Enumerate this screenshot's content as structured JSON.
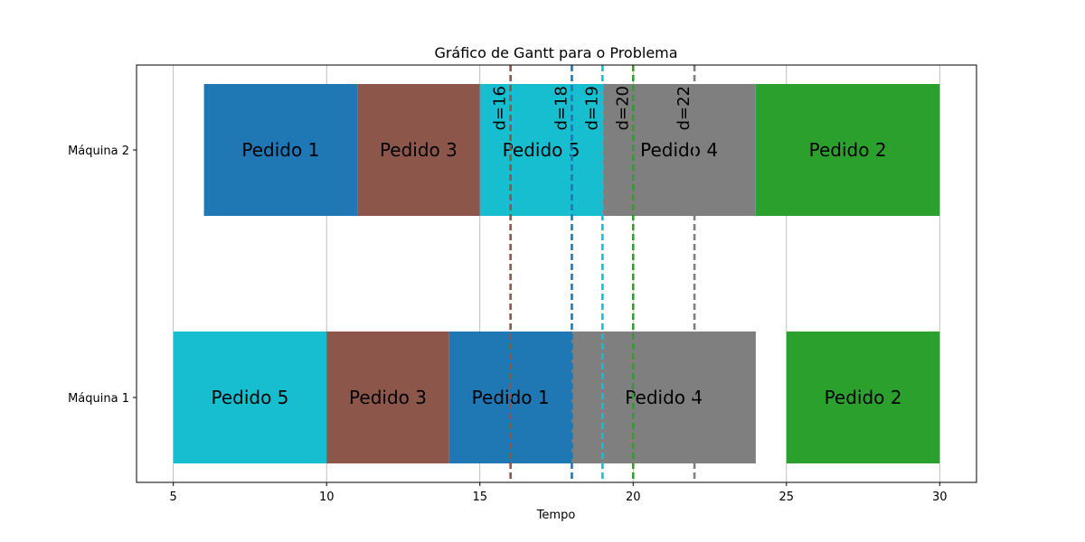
{
  "chart_data": {
    "type": "gantt",
    "title": "Gráfico de Gantt para o Problema",
    "xlabel": "Tempo",
    "ylabel": "",
    "xlim": [
      3.8,
      31.2
    ],
    "xticks": [
      5,
      10,
      15,
      20,
      25,
      30
    ],
    "grid": "vertical",
    "machines": [
      "Máquina 1",
      "Máquina 2"
    ],
    "tasks": [
      {
        "machine": "Máquina 1",
        "order": "Pedido 5",
        "start": 5,
        "end": 10,
        "color": "#17becf"
      },
      {
        "machine": "Máquina 1",
        "order": "Pedido 3",
        "start": 10,
        "end": 14,
        "color": "#8c564b"
      },
      {
        "machine": "Máquina 1",
        "order": "Pedido 1",
        "start": 14,
        "end": 18,
        "color": "#1f77b4"
      },
      {
        "machine": "Máquina 1",
        "order": "Pedido 4",
        "start": 18,
        "end": 24,
        "color": "#7f7f7f"
      },
      {
        "machine": "Máquina 1",
        "order": "Pedido 2",
        "start": 25,
        "end": 30,
        "color": "#2ca02c"
      },
      {
        "machine": "Máquina 2",
        "order": "Pedido 1",
        "start": 6,
        "end": 11,
        "color": "#1f77b4"
      },
      {
        "machine": "Máquina 2",
        "order": "Pedido 3",
        "start": 11,
        "end": 15,
        "color": "#8c564b"
      },
      {
        "machine": "Máquina 2",
        "order": "Pedido 5",
        "start": 15,
        "end": 19,
        "color": "#17becf"
      },
      {
        "machine": "Máquina 2",
        "order": "Pedido 4",
        "start": 19,
        "end": 24,
        "color": "#7f7f7f"
      },
      {
        "machine": "Máquina 2",
        "order": "Pedido 2",
        "start": 24,
        "end": 30,
        "color": "#2ca02c"
      }
    ],
    "due_dates": [
      {
        "label": "d=16",
        "x": 16,
        "color": "#8c564b"
      },
      {
        "label": "d=18",
        "x": 18,
        "color": "#1f77b4"
      },
      {
        "label": "d=19",
        "x": 19,
        "color": "#17becf"
      },
      {
        "label": "d=20",
        "x": 20,
        "color": "#2ca02c"
      },
      {
        "label": "d=22",
        "x": 22,
        "color": "#7f7f7f"
      }
    ]
  }
}
